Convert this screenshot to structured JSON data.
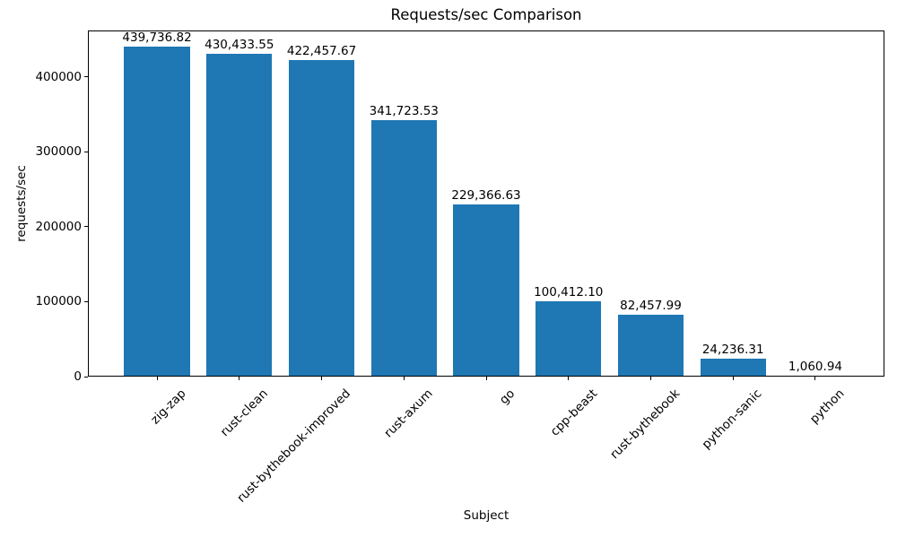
{
  "chart_data": {
    "type": "bar",
    "title": "Requests/sec Comparison",
    "xlabel": "Subject",
    "ylabel": "requests/sec",
    "categories": [
      "zig-zap",
      "rust-clean",
      "rust-bythebook-improved",
      "rust-axum",
      "go",
      "cpp-beast",
      "rust-bythebook",
      "python-sanic",
      "python"
    ],
    "values": [
      439736.82,
      430433.55,
      422457.67,
      341723.53,
      229366.63,
      100412.1,
      82457.99,
      24236.31,
      1060.94
    ],
    "value_labels": [
      "439,736.82",
      "430,433.55",
      "422,457.67",
      "341,723.53",
      "229,366.63",
      "100,412.10",
      "82,457.99",
      "24,236.31",
      "1,060.94"
    ],
    "ylim": [
      0,
      461724
    ],
    "yticks": [
      0,
      100000,
      200000,
      300000,
      400000
    ],
    "ytick_labels": [
      "0",
      "100000",
      "200000",
      "300000",
      "400000"
    ],
    "xtick_rotation_deg": 45,
    "bar_color": "#1f77b4",
    "text_color": "#000000",
    "background_color": "#ffffff",
    "grid": false,
    "legend": null
  }
}
